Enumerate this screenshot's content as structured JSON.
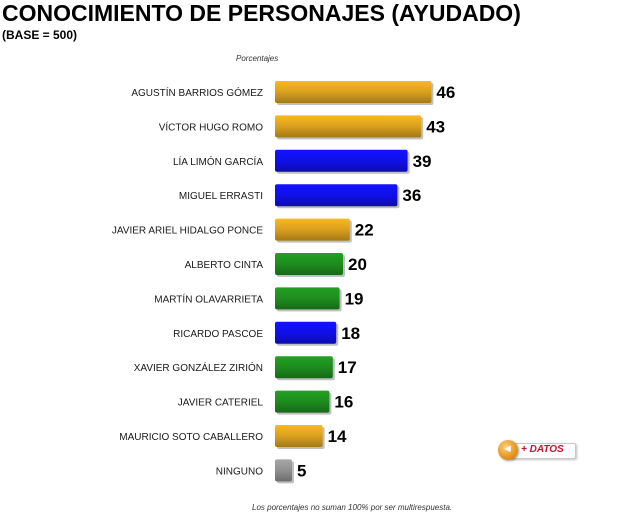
{
  "header": {
    "title": "CONOCIMIENTO DE PERSONAJES (AYUDADO)",
    "subtitle": "(BASE = 500)",
    "units": "Porcentajes"
  },
  "footer": {
    "note": "Los porcentajes no suman 100% por ser multirespuesta."
  },
  "more_button": {
    "label": "+ DATOS",
    "icon": "arrow-left-icon"
  },
  "colors": {
    "gold": "#D9A01E",
    "blue": "#1010E8",
    "green": "#1E8C1E",
    "gray": "#909090"
  },
  "chart_data": {
    "type": "bar",
    "orientation": "horizontal",
    "title": "CONOCIMIENTO DE PERSONAJES (AYUDADO)",
    "subtitle": "(BASE = 500)",
    "categories": [
      "AGUSTÍN BARRIOS GÓMEZ",
      "VÍCTOR HUGO ROMO",
      "LÍA LIMÓN GARCÍA",
      "MIGUEL ERRASTI",
      "JAVIER ARIEL HIDALGO PONCE",
      "ALBERTO CINTA",
      "MARTÍN OLAVARRIETA",
      "RICARDO PASCOE",
      "XAVIER GONZÁLEZ ZIRIÓN",
      "JAVIER CATERIEL",
      "MAURICIO SOTO CABALLERO",
      "NINGUNO"
    ],
    "values": [
      46,
      43,
      39,
      36,
      22,
      20,
      19,
      18,
      17,
      16,
      14,
      5
    ],
    "bar_colors": [
      "gold",
      "gold",
      "blue",
      "blue",
      "gold",
      "green",
      "green",
      "blue",
      "green",
      "green",
      "gold",
      "gray"
    ],
    "grid": false,
    "legend": "none"
  }
}
